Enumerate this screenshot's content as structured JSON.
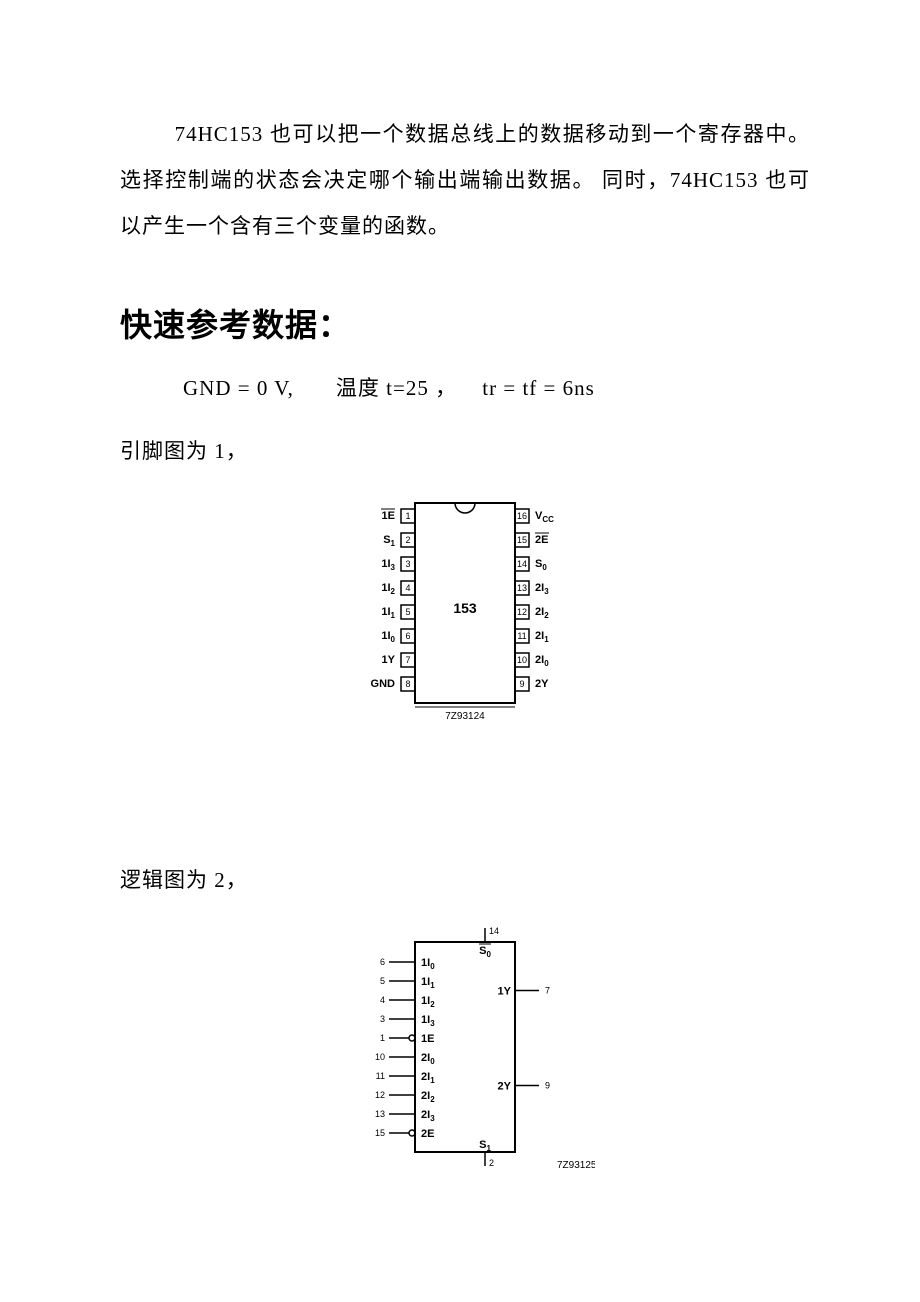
{
  "paragraph1": "74HC153 也可以把一个数据总线上的数据移动到一个寄存器中。选择控制端的状态会决定哪个输出端输出数据。 同时，74HC153 也可以产生一个含有三个变量的函数。",
  "heading": "快速参考数据：",
  "refline_a": "GND = 0 V,",
  "refline_b": "温度 t=25 ，",
  "refline_c": "tr = tf = 6ns",
  "fig1_caption": "引脚图为 1，",
  "fig2_caption": "逻辑图为 2，",
  "pin_diagram": {
    "center_label": "153",
    "footer": "7Z93124",
    "left_pins": [
      {
        "num": "1",
        "label": "1E",
        "bar": true
      },
      {
        "num": "2",
        "label": "S",
        "sub": "1"
      },
      {
        "num": "3",
        "label": "1I",
        "sub": "3"
      },
      {
        "num": "4",
        "label": "1I",
        "sub": "2"
      },
      {
        "num": "5",
        "label": "1I",
        "sub": "1"
      },
      {
        "num": "6",
        "label": "1I",
        "sub": "0"
      },
      {
        "num": "7",
        "label": "1Y"
      },
      {
        "num": "8",
        "label": "GND"
      }
    ],
    "right_pins": [
      {
        "num": "16",
        "label": "V",
        "sub": "CC"
      },
      {
        "num": "15",
        "label": "2E",
        "bar": true
      },
      {
        "num": "14",
        "label": "S",
        "sub": "0"
      },
      {
        "num": "13",
        "label": "2I",
        "sub": "3"
      },
      {
        "num": "12",
        "label": "2I",
        "sub": "2"
      },
      {
        "num": "11",
        "label": "2I",
        "sub": "1"
      },
      {
        "num": "10",
        "label": "2I",
        "sub": "0"
      },
      {
        "num": "9",
        "label": "2Y"
      }
    ]
  },
  "logic_diagram": {
    "footer": "7Z93125",
    "top": {
      "num": "14",
      "label": "S",
      "sub": "0"
    },
    "bottom": {
      "num": "2",
      "label": "S",
      "sub": "1"
    },
    "left": [
      {
        "num": "6",
        "label": "1I",
        "sub": "0"
      },
      {
        "num": "5",
        "label": "1I",
        "sub": "1"
      },
      {
        "num": "4",
        "label": "1I",
        "sub": "2"
      },
      {
        "num": "3",
        "label": "1I",
        "sub": "3"
      },
      {
        "num": "1",
        "label": "1E",
        "bubble": true
      },
      {
        "num": "10",
        "label": "2I",
        "sub": "0"
      },
      {
        "num": "11",
        "label": "2I",
        "sub": "1"
      },
      {
        "num": "12",
        "label": "2I",
        "sub": "2"
      },
      {
        "num": "13",
        "label": "2I",
        "sub": "3"
      },
      {
        "num": "15",
        "label": "2E",
        "bubble": true
      }
    ],
    "right": [
      {
        "num": "7",
        "label": "1Y"
      },
      {
        "num": "9",
        "label": "2Y"
      }
    ]
  }
}
